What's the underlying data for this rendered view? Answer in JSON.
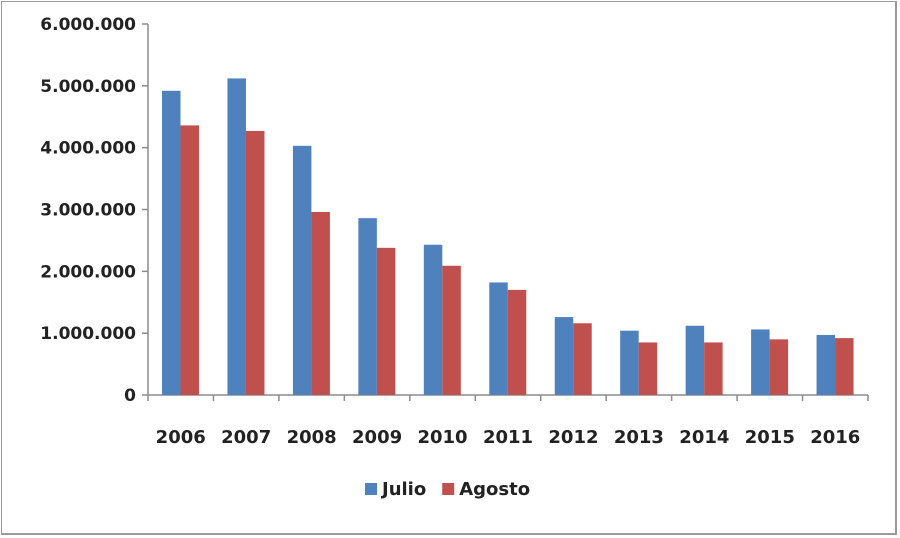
{
  "chart_data": {
    "type": "bar",
    "title": "",
    "xlabel": "",
    "ylabel": "",
    "categories": [
      "2006",
      "2007",
      "2008",
      "2009",
      "2010",
      "2011",
      "2012",
      "2013",
      "2014",
      "2015",
      "2016"
    ],
    "series": [
      {
        "name": "Julio",
        "color": "#4f81bd",
        "values": [
          4920000,
          5120000,
          4030000,
          2860000,
          2430000,
          1820000,
          1260000,
          1040000,
          1120000,
          1060000,
          970000
        ]
      },
      {
        "name": "Agosto",
        "color": "#c0504d",
        "values": [
          4360000,
          4270000,
          2960000,
          2380000,
          2090000,
          1700000,
          1160000,
          850000,
          850000,
          900000,
          920000
        ]
      }
    ],
    "ylim": [
      0,
      6000000
    ],
    "yticks": [
      {
        "value": 0,
        "label": "0"
      },
      {
        "value": 1000000,
        "label": "1.000.000"
      },
      {
        "value": 2000000,
        "label": "2.000.000"
      },
      {
        "value": 3000000,
        "label": "3.000.000"
      },
      {
        "value": 4000000,
        "label": "4.000.000"
      },
      {
        "value": 5000000,
        "label": "5.000.000"
      },
      {
        "value": 6000000,
        "label": "6.000.000"
      }
    ],
    "grid": false,
    "legend": "bottom"
  }
}
